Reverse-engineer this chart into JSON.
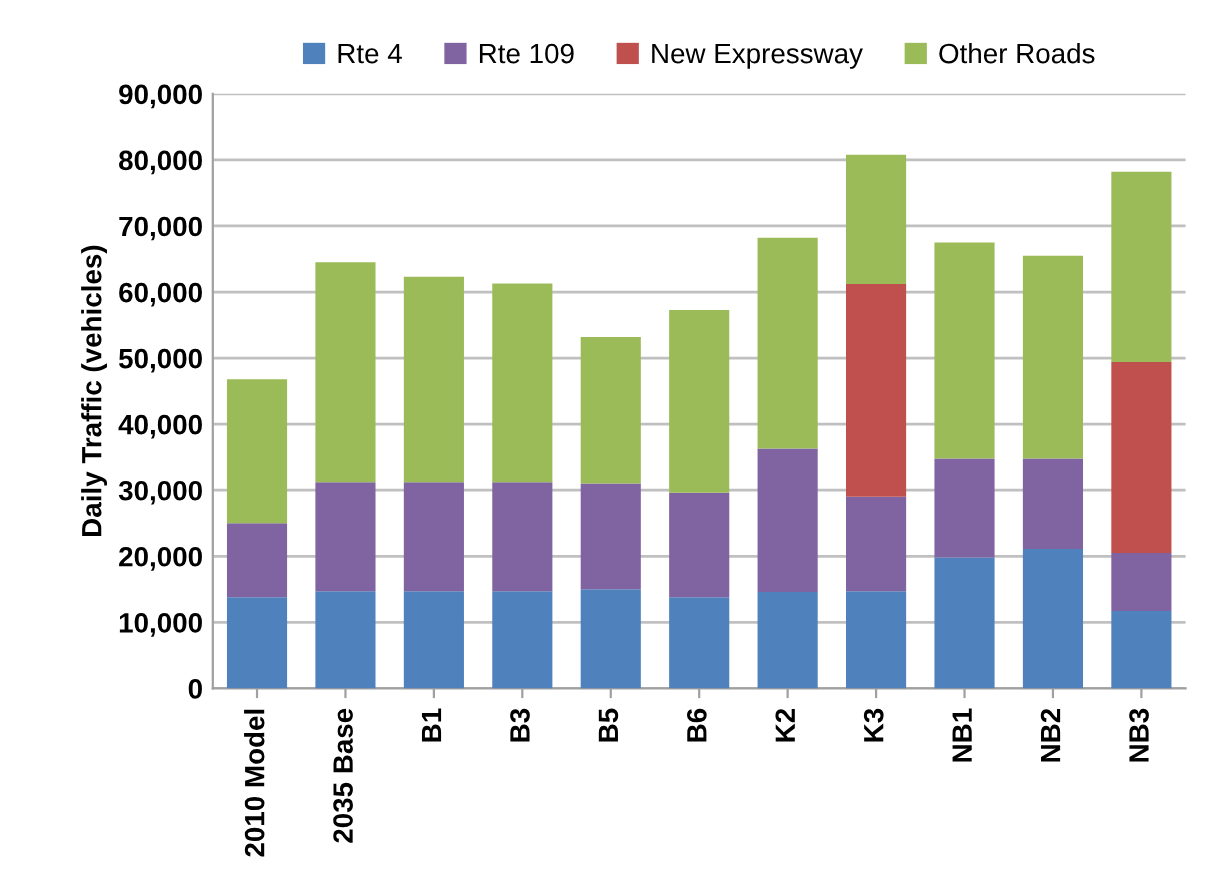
{
  "chart_data": {
    "type": "bar",
    "stacked": true,
    "ylabel": "Daily Traffic (vehicles)",
    "categories": [
      "2010 Model",
      "2035 Base",
      "B1",
      "B3",
      "B5",
      "B6",
      "K2",
      "K3",
      "NB1",
      "NB2",
      "NB3"
    ],
    "series": [
      {
        "name": "Rte 4",
        "color": "#4f81bd",
        "values": [
          13800,
          14700,
          14700,
          14700,
          15000,
          13800,
          14600,
          14700,
          19800,
          21100,
          11700
        ]
      },
      {
        "name": "Rte 109",
        "color": "#8064a2",
        "values": [
          11200,
          16500,
          16500,
          16500,
          16000,
          15800,
          21700,
          14300,
          15000,
          13700,
          8800
        ]
      },
      {
        "name": "New Expressway",
        "color": "#c0504d",
        "values": [
          null,
          null,
          null,
          null,
          null,
          null,
          null,
          32200,
          null,
          null,
          28900
        ]
      },
      {
        "name": "Other Roads",
        "color": "#9bbb59",
        "values": [
          21800,
          33300,
          31100,
          30100,
          22200,
          27700,
          31900,
          19600,
          32700,
          30700,
          28800
        ]
      }
    ],
    "ylim": [
      0,
      90000
    ],
    "yticks": [
      {
        "value": 0,
        "label": "0"
      },
      {
        "value": 10000,
        "label": "10,000"
      },
      {
        "value": 20000,
        "label": "20,000"
      },
      {
        "value": 30000,
        "label": "30,000"
      },
      {
        "value": 40000,
        "label": "40,000"
      },
      {
        "value": 50000,
        "label": "50,000"
      },
      {
        "value": 60000,
        "label": "60,000"
      },
      {
        "value": 70000,
        "label": "70,000"
      },
      {
        "value": 80000,
        "label": "80,000"
      },
      {
        "value": 90000,
        "label": "90,000"
      }
    ],
    "grid": "y",
    "legend": "top"
  }
}
